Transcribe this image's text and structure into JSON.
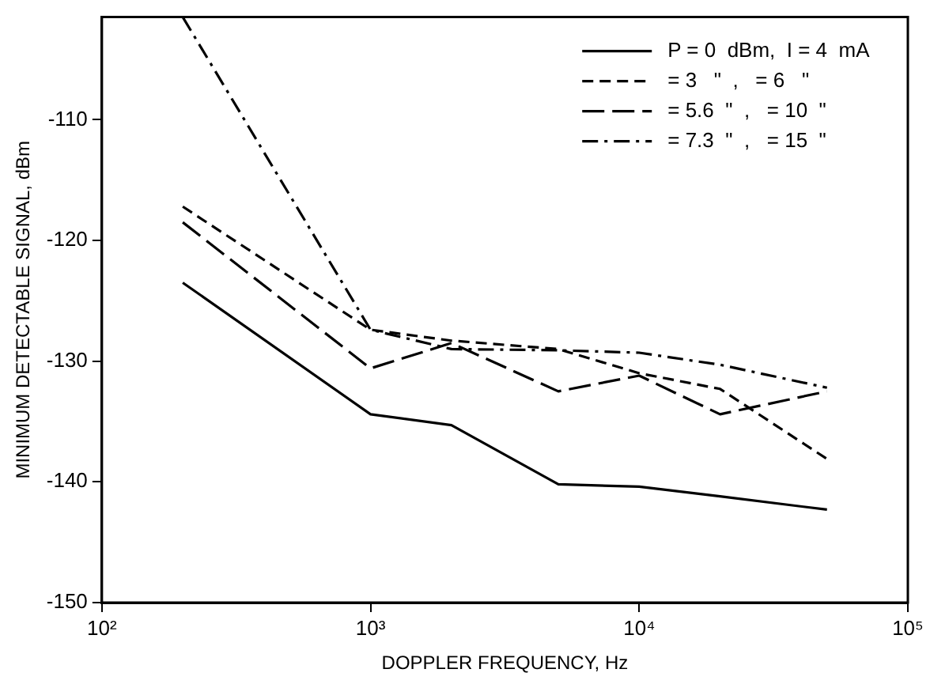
{
  "chart_data": {
    "type": "line",
    "xlabel": "DOPPLER FREQUENCY, Hz",
    "ylabel": "MINIMUM DETECTABLE SIGNAL, dBm",
    "log": "x",
    "grid": false,
    "legend": "top right",
    "marker": "none",
    "xlim": [
      100,
      100000
    ],
    "xticks": [
      {
        "value": 100,
        "label": "10²"
      },
      {
        "value": 1000,
        "label": "10³"
      },
      {
        "value": 10000,
        "label": "10⁴"
      },
      {
        "value": 100000,
        "label": "10⁵"
      }
    ],
    "ylim": [
      -150,
      -101.5
    ],
    "yticks": [
      -150,
      -140,
      -130,
      -120,
      -110
    ],
    "x": [
      200,
      1000,
      2000,
      5000,
      10000,
      20000,
      50000
    ],
    "series": [
      {
        "name": "P = 0  dBm,  I = 4  mA",
        "color": "#000000",
        "line_style": "solid",
        "values": [
          -123.5,
          -134.4,
          -135.3,
          -140.2,
          -140.4,
          -141.2,
          -142.3
        ]
      },
      {
        "name": "= 3   \"  ,   = 6   \"",
        "color": "#000000",
        "line_style": "dashed",
        "values": [
          -117.2,
          -127.4,
          -128.3,
          -129,
          -131,
          -132.3,
          -138.1
        ]
      },
      {
        "name": "= 5.6  \"  ,   = 10  \"",
        "color": "#000000",
        "line_style": "longdash",
        "values": [
          -118.5,
          -130.6,
          -128.5,
          -132.5,
          -131.2,
          -134.4,
          -132.5
        ]
      },
      {
        "name": "= 7.3  \"  ,   = 15  \"",
        "color": "#000000",
        "line_style": "dashdot",
        "values": [
          -101.5,
          -127.4,
          -129,
          -129.1,
          -129.3,
          -130.3,
          -132.2
        ]
      }
    ]
  }
}
